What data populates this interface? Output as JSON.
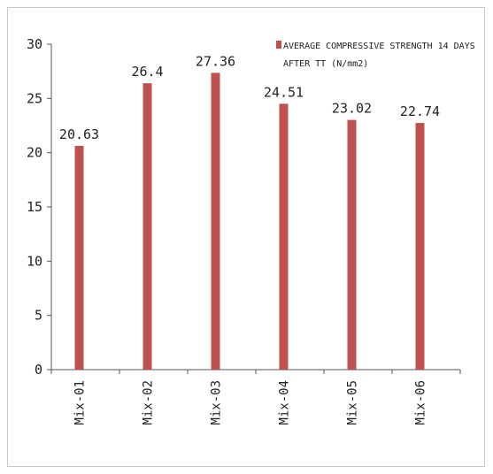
{
  "chart_data": {
    "type": "bar",
    "categories": [
      "Mix-01",
      "Mix-02",
      "Mix-03",
      "Mix-04",
      "Mix-05",
      "Mix-06"
    ],
    "series": [
      {
        "name": "AVERAGE COMPRESSIVE STRENGTH 14 DAYS AFTER TT (N/mm2)",
        "values": [
          20.63,
          26.4,
          27.36,
          24.51,
          23.02,
          22.74
        ],
        "color": "#c0504d"
      }
    ],
    "data_labels": [
      "20.63",
      "26.4",
      "27.36",
      "24.51",
      "23.02",
      "22.74"
    ],
    "y_ticks": [
      "0",
      "5",
      "10",
      "15",
      "20",
      "25",
      "30"
    ],
    "ylim": [
      0,
      30
    ],
    "title": "",
    "xlabel": "",
    "ylabel": "",
    "grid": false,
    "legend_position": "top-right"
  }
}
